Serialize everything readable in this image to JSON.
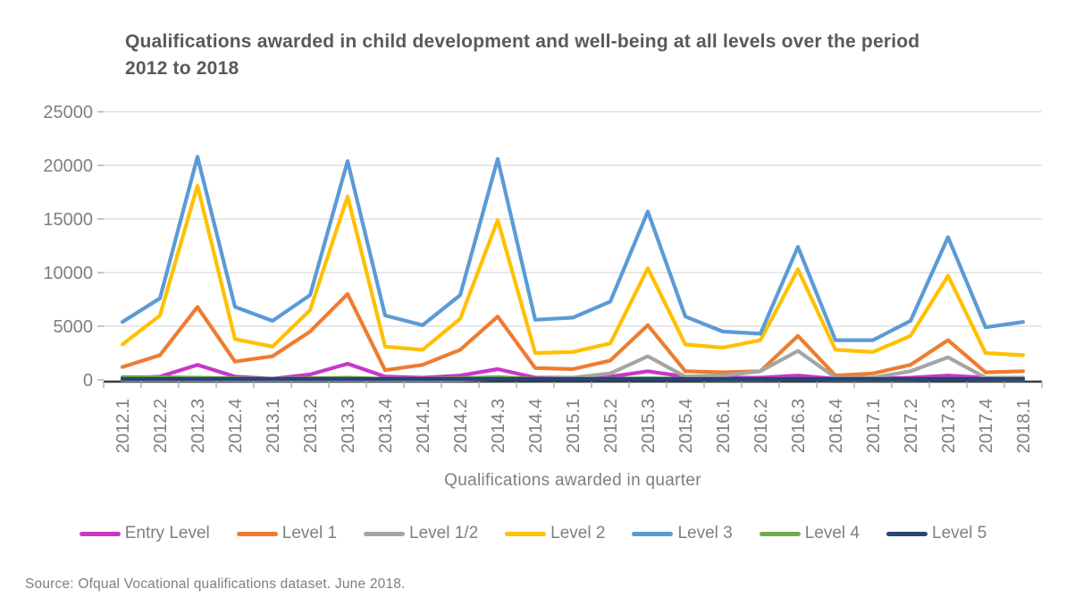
{
  "title": "Qualifications awarded in child development and well-being at all levels over the period 2012 to 2018",
  "x_axis_title": "Qualifications awarded in quarter",
  "source_note": "Source: Ofqual Vocational  qualifications dataset. June 2018.",
  "colors": {
    "background": "#FFFFFF",
    "title_text": "#595959",
    "axis_text": "#7F7F7F",
    "gridline": "#D9D9D9",
    "axis_line": "#3B3B3B",
    "tick_mark": "#A6A6A6"
  },
  "chart_data": {
    "type": "line",
    "title": "Qualifications awarded in child development and well-being at all levels over the period 2012 to 2018",
    "xlabel": "Qualifications awarded in quarter",
    "ylabel": "",
    "ylim": [
      0,
      25000
    ],
    "yticks": [
      0,
      5000,
      10000,
      15000,
      20000,
      25000
    ],
    "grid": true,
    "legend_position": "bottom",
    "categories": [
      "2012.1",
      "2012.2",
      "2012.3",
      "2012.4",
      "2013.1",
      "2013.2",
      "2013.3",
      "2013.4",
      "2014.1",
      "2014.2",
      "2014.3",
      "2014.4",
      "2015.1",
      "2015.2",
      "2015.3",
      "2015.4",
      "2016.1",
      "2016.2",
      "2016.3",
      "2016.4",
      "2017.1",
      "2017.2",
      "2017.3",
      "2017.4",
      "2018.1"
    ],
    "series": [
      {
        "name": "Entry Level",
        "color": "#C837C8",
        "values": [
          100,
          300,
          1400,
          300,
          100,
          500,
          1500,
          300,
          200,
          400,
          1000,
          200,
          200,
          300,
          800,
          300,
          200,
          200,
          400,
          100,
          100,
          200,
          400,
          200,
          200
        ]
      },
      {
        "name": "Level 1",
        "color": "#ED7D31",
        "values": [
          1200,
          2300,
          6800,
          1700,
          2200,
          4500,
          8000,
          900,
          1400,
          2800,
          5900,
          1100,
          1000,
          1800,
          5100,
          800,
          700,
          800,
          4100,
          400,
          600,
          1400,
          3700,
          700,
          800
        ]
      },
      {
        "name": "Level 1/2",
        "color": "#A5A5A5",
        "values": [
          0,
          0,
          0,
          0,
          0,
          0,
          0,
          0,
          0,
          0,
          100,
          100,
          200,
          600,
          2200,
          300,
          400,
          800,
          2700,
          200,
          200,
          800,
          2100,
          200,
          200
        ]
      },
      {
        "name": "Level 2",
        "color": "#FFC000",
        "values": [
          3300,
          6000,
          18100,
          3800,
          3100,
          6500,
          17100,
          3100,
          2800,
          5700,
          14900,
          2500,
          2600,
          3400,
          10400,
          3300,
          3000,
          3700,
          10300,
          2800,
          2600,
          4100,
          9700,
          2500,
          2300
        ]
      },
      {
        "name": "Level 3",
        "color": "#5B9BD5",
        "values": [
          5400,
          7600,
          20800,
          6800,
          5500,
          7900,
          20400,
          6000,
          5100,
          7900,
          20600,
          5600,
          5800,
          7300,
          15700,
          5900,
          4500,
          4300,
          12400,
          3700,
          3700,
          5500,
          13300,
          4900,
          5400
        ]
      },
      {
        "name": "Level 4",
        "color": "#70AD47",
        "values": [
          250,
          250,
          200,
          150,
          100,
          150,
          200,
          100,
          100,
          150,
          250,
          100,
          100,
          100,
          150,
          100,
          50,
          50,
          100,
          50,
          50,
          50,
          100,
          50,
          50
        ]
      },
      {
        "name": "Level 5",
        "color": "#264478",
        "values": [
          80,
          80,
          80,
          80,
          80,
          80,
          80,
          80,
          80,
          80,
          80,
          80,
          80,
          80,
          80,
          80,
          80,
          80,
          80,
          80,
          80,
          80,
          80,
          80,
          80
        ]
      }
    ]
  }
}
